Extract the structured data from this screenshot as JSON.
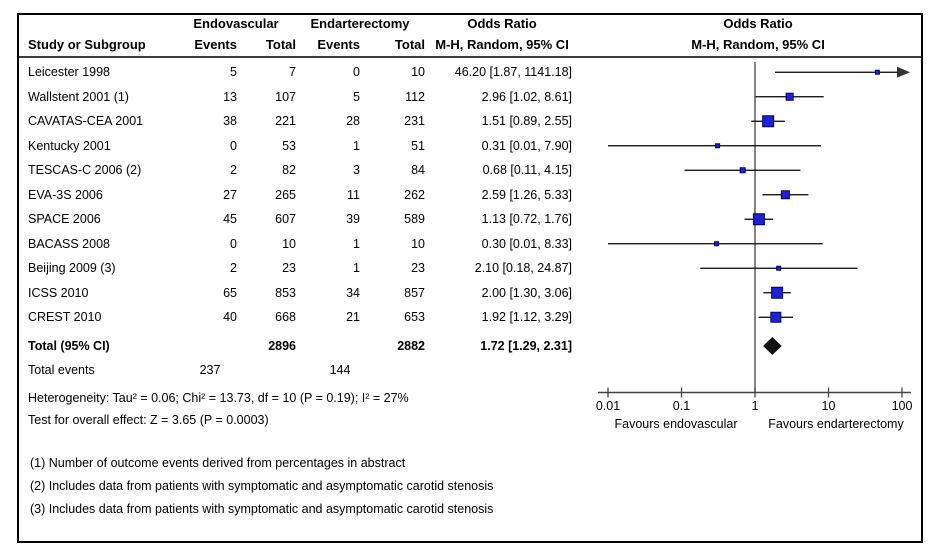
{
  "figure": {
    "columns": {
      "study": "Study or Subgroup",
      "group1": "Endovascular",
      "group2": "Endarterectomy",
      "events": "Events",
      "total": "Total",
      "or_stat": "Odds Ratio",
      "or_method": "M-H, Random, 95% CI"
    }
  },
  "chart_data": {
    "type": "forest",
    "x_scale": "log10",
    "xlim": [
      0.01,
      100
    ],
    "x_ticks": [
      "0.01",
      "0.1",
      "1",
      "10",
      "100"
    ],
    "x_tick_values": [
      0.01,
      0.1,
      1,
      10,
      100
    ],
    "favours_left": "Favours endovascular",
    "favours_right": "Favours endarterectomy",
    "studies": [
      {
        "name": "Leicester 1998",
        "e_events": "5",
        "e_total": "7",
        "c_events": "0",
        "c_total": "10",
        "or_text": "46.20 [1.87, 1141.18]",
        "or": 46.2,
        "lo": 1.87,
        "hi": 1141.18,
        "size": 4
      },
      {
        "name": "Wallstent 2001 (1)",
        "e_events": "13",
        "e_total": "107",
        "c_events": "5",
        "c_total": "112",
        "or_text": "2.96 [1.02, 8.61]",
        "or": 2.96,
        "lo": 1.02,
        "hi": 8.61,
        "size": 7
      },
      {
        "name": "CAVATAS-CEA 2001",
        "e_events": "38",
        "e_total": "221",
        "c_events": "28",
        "c_total": "231",
        "or_text": "1.51 [0.89, 2.55]",
        "or": 1.51,
        "lo": 0.89,
        "hi": 2.55,
        "size": 11
      },
      {
        "name": "Kentucky 2001",
        "e_events": "0",
        "e_total": "53",
        "c_events": "1",
        "c_total": "51",
        "or_text": "0.31 [0.01, 7.90]",
        "or": 0.31,
        "lo": 0.01,
        "hi": 7.9,
        "size": 4
      },
      {
        "name": "TESCAS-C 2006 (2)",
        "e_events": "2",
        "e_total": "82",
        "c_events": "3",
        "c_total": "84",
        "or_text": "0.68 [0.11, 4.15]",
        "or": 0.68,
        "lo": 0.11,
        "hi": 4.15,
        "size": 5
      },
      {
        "name": "EVA-3S 2006",
        "e_events": "27",
        "e_total": "265",
        "c_events": "11",
        "c_total": "262",
        "or_text": "2.59 [1.26, 5.33]",
        "or": 2.59,
        "lo": 1.26,
        "hi": 5.33,
        "size": 8
      },
      {
        "name": "SPACE 2006",
        "e_events": "45",
        "e_total": "607",
        "c_events": "39",
        "c_total": "589",
        "or_text": "1.13 [0.72, 1.76]",
        "or": 1.13,
        "lo": 0.72,
        "hi": 1.76,
        "size": 11
      },
      {
        "name": "BACASS 2008",
        "e_events": "0",
        "e_total": "10",
        "c_events": "1",
        "c_total": "10",
        "or_text": "0.30 [0.01, 8.33]",
        "or": 0.3,
        "lo": 0.01,
        "hi": 8.33,
        "size": 4
      },
      {
        "name": "Beijing 2009 (3)",
        "e_events": "2",
        "e_total": "23",
        "c_events": "1",
        "c_total": "23",
        "or_text": "2.10 [0.18, 24.87]",
        "or": 2.1,
        "lo": 0.18,
        "hi": 24.87,
        "size": 4
      },
      {
        "name": "ICSS 2010",
        "e_events": "65",
        "e_total": "853",
        "c_events": "34",
        "c_total": "857",
        "or_text": "2.00 [1.30, 3.06]",
        "or": 2.0,
        "lo": 1.3,
        "hi": 3.06,
        "size": 11
      },
      {
        "name": "CREST 2010",
        "e_events": "40",
        "e_total": "668",
        "c_events": "21",
        "c_total": "653",
        "or_text": "1.92 [1.12, 3.29]",
        "or": 1.92,
        "lo": 1.12,
        "hi": 3.29,
        "size": 10
      }
    ],
    "total": {
      "label": "Total (95% CI)",
      "e_total": "2896",
      "c_total": "2882",
      "or_text": "1.72 [1.29, 2.31]",
      "or": 1.72,
      "lo": 1.29,
      "hi": 2.31
    },
    "total_events": {
      "label": "Total events",
      "e_events": "237",
      "c_events": "144"
    },
    "heterogeneity": "Heterogeneity: Tau² = 0.06; Chi² = 13.73, df = 10 (P = 0.19); I² = 27%",
    "overall_effect": "Test for overall effect: Z = 3.65 (P = 0.0003)",
    "footnotes": [
      "(1) Number of outcome events derived from percentages in abstract",
      "(2) Includes data from patients with symptomatic and asymptomatic carotid stenosis",
      "(3) Includes data from patients with symptomatic and asymptomatic carotid stenosis"
    ],
    "colors": {
      "marker_fill": "#2222cc",
      "marker_stroke": "#000066",
      "diamond": "#111111",
      "line": "#000000",
      "axis": "#444444"
    }
  }
}
